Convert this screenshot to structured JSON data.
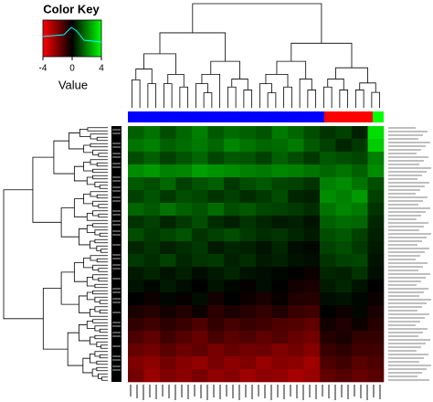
{
  "chart_data": {
    "type": "heatmap",
    "color_key": {
      "title": "Color Key",
      "label": "Value",
      "zlim": [
        -4,
        4
      ],
      "ticks": [
        -4,
        0,
        4
      ],
      "colors": [
        "#ff0000",
        "#000000",
        "#00ff00"
      ]
    },
    "values": [
      [
        1.5,
        1.8,
        1.2,
        1.6,
        2.0,
        1.4,
        1.7,
        1.5,
        1.3,
        1.9,
        1.6,
        1.2,
        0.8,
        1.0,
        0.5,
        3.5
      ],
      [
        1.8,
        2.0,
        1.5,
        1.7,
        1.9,
        1.6,
        2.1,
        1.8,
        1.6,
        1.7,
        1.9,
        1.4,
        1.0,
        0.6,
        0.9,
        3.2
      ],
      [
        1.2,
        1.5,
        1.0,
        1.3,
        1.6,
        1.1,
        1.4,
        1.3,
        1.0,
        1.5,
        1.2,
        0.9,
        1.4,
        1.2,
        1.1,
        2.0
      ],
      [
        2.2,
        2.4,
        2.0,
        2.1,
        2.5,
        2.3,
        2.2,
        2.0,
        1.9,
        2.1,
        2.0,
        1.8,
        1.6,
        1.8,
        1.5,
        2.2
      ],
      [
        1.4,
        1.2,
        1.6,
        1.0,
        1.3,
        1.5,
        0.9,
        1.2,
        1.4,
        1.1,
        1.0,
        0.8,
        2.0,
        2.2,
        1.8,
        1.2
      ],
      [
        1.0,
        1.3,
        0.9,
        1.2,
        1.1,
        0.8,
        1.0,
        0.7,
        0.9,
        1.2,
        0.6,
        0.5,
        2.2,
        2.0,
        2.4,
        1.0
      ],
      [
        1.6,
        1.4,
        1.8,
        1.5,
        1.3,
        1.7,
        1.2,
        1.4,
        1.1,
        1.0,
        0.9,
        0.7,
        1.8,
        2.1,
        1.9,
        0.8
      ],
      [
        0.8,
        1.0,
        0.6,
        0.9,
        1.2,
        0.7,
        0.5,
        0.8,
        0.6,
        0.4,
        0.5,
        0.3,
        1.5,
        1.7,
        1.6,
        0.6
      ],
      [
        1.2,
        0.9,
        1.1,
        1.3,
        0.8,
        1.0,
        1.2,
        0.9,
        0.7,
        0.8,
        0.6,
        0.4,
        1.2,
        1.4,
        1.0,
        0.5
      ],
      [
        0.6,
        0.8,
        0.5,
        0.7,
        0.9,
        0.4,
        0.6,
        0.5,
        0.3,
        0.6,
        0.2,
        0.1,
        1.0,
        1.2,
        0.9,
        0.4
      ],
      [
        0.9,
        0.7,
        1.0,
        0.6,
        0.8,
        0.9,
        0.5,
        0.7,
        0.4,
        0.5,
        0.3,
        0.2,
        0.8,
        1.0,
        1.1,
        0.3
      ],
      [
        0.4,
        0.6,
        0.3,
        0.5,
        0.2,
        0.4,
        0.6,
        0.3,
        0.2,
        0.1,
        0.0,
        -0.2,
        0.6,
        0.5,
        0.8,
        0.2
      ],
      [
        0.3,
        0.1,
        0.4,
        0.2,
        0.0,
        0.3,
        0.1,
        -0.1,
        0.2,
        0.0,
        -0.3,
        -0.4,
        0.4,
        0.6,
        0.3,
        0.0
      ],
      [
        0.0,
        -0.2,
        0.1,
        -0.1,
        0.2,
        -0.3,
        0.0,
        -0.2,
        -0.4,
        -0.1,
        -0.5,
        -0.6,
        0.2,
        0.3,
        0.1,
        -0.2
      ],
      [
        -0.4,
        -0.6,
        -0.3,
        -0.5,
        -0.2,
        -0.7,
        -0.4,
        -0.6,
        -0.8,
        -0.5,
        -0.9,
        -1.0,
        0.0,
        -0.2,
        0.1,
        -0.4
      ],
      [
        -0.8,
        -1.0,
        -0.7,
        -0.9,
        -1.2,
        -0.8,
        -1.1,
        -0.9,
        -1.0,
        -1.2,
        -1.3,
        -1.5,
        -0.3,
        -0.5,
        -0.2,
        -0.6
      ],
      [
        -1.2,
        -1.5,
        -1.0,
        -1.3,
        -1.6,
        -1.1,
        -1.4,
        -1.2,
        -1.5,
        -1.3,
        -1.6,
        -1.8,
        -0.6,
        -0.4,
        -0.8,
        -0.8
      ],
      [
        -1.6,
        -1.8,
        -1.4,
        -1.7,
        -1.5,
        -1.9,
        -1.6,
        -1.8,
        -1.7,
        -2.0,
        -1.8,
        -2.1,
        -0.9,
        -0.7,
        -1.0,
        -1.0
      ],
      [
        -2.0,
        -2.2,
        -1.8,
        -2.1,
        -2.3,
        -1.9,
        -2.2,
        -2.0,
        -2.4,
        -2.1,
        -2.2,
        -2.5,
        -1.2,
        -1.0,
        -1.4,
        -1.2
      ],
      [
        -1.8,
        -2.4,
        -2.0,
        -2.2,
        -1.9,
        -2.3,
        -2.1,
        -2.5,
        -2.2,
        -2.3,
        -2.6,
        -2.4,
        -1.5,
        -1.3,
        -1.6,
        -1.4
      ]
    ]
  }
}
